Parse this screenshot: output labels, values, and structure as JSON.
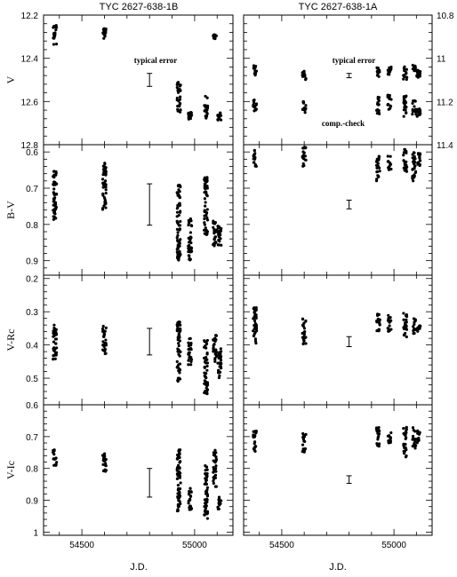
{
  "chart_data": {
    "type": "scatter",
    "xlabel": "J.D.",
    "xlim": [
      54330,
      55170
    ],
    "xticks": [
      54500,
      55000
    ],
    "columns": [
      {
        "title": "TYC 2627-638-1B"
      },
      {
        "title": "TYC 2627-638-1A"
      }
    ],
    "panels": [
      {
        "ylabel": "V",
        "ylim": [
          12.2,
          12.8
        ],
        "yticks_left": [
          12.2,
          12.4,
          12.6,
          12.8
        ],
        "yticks_right": [
          10.8,
          11,
          11.2,
          11.4
        ],
        "right_ylim": [
          10.8,
          11.4
        ],
        "annotation": "typical error",
        "annotation_right_extra": "comp.-check",
        "B": {
          "clusters": [
            {
              "x": 54380,
              "y": [
                12.24,
                12.34
              ]
            },
            {
              "x": 54600,
              "y": [
                12.26,
                12.31
              ]
            },
            {
              "x": 54930,
              "y": [
                12.51,
                12.66
              ]
            },
            {
              "x": 54980,
              "y": [
                12.65,
                12.69
              ]
            },
            {
              "x": 55050,
              "y": [
                12.57,
                12.68
              ]
            },
            {
              "x": 55090,
              "y": [
                12.29,
                12.31
              ]
            },
            {
              "x": 55110,
              "y": [
                12.65,
                12.69
              ]
            }
          ],
          "error_bar": {
            "x": 54800,
            "y": 12.5,
            "err": 0.03
          }
        },
        "A": {
          "clusters": [
            {
              "x": 54380,
              "y": [
                11.03,
                11.08
              ]
            },
            {
              "x": 54380,
              "y": [
                11.19,
                11.25
              ]
            },
            {
              "x": 54600,
              "y": [
                11.06,
                11.1
              ]
            },
            {
              "x": 54600,
              "y": [
                11.2,
                11.26
              ]
            },
            {
              "x": 54930,
              "y": [
                11.04,
                11.09
              ]
            },
            {
              "x": 54930,
              "y": [
                11.18,
                11.26
              ]
            },
            {
              "x": 54980,
              "y": [
                11.04,
                11.08
              ]
            },
            {
              "x": 54980,
              "y": [
                11.17,
                11.24
              ]
            },
            {
              "x": 55050,
              "y": [
                11.03,
                11.1
              ]
            },
            {
              "x": 55050,
              "y": [
                11.17,
                11.27
              ]
            },
            {
              "x": 55090,
              "y": [
                11.03,
                11.06
              ]
            },
            {
              "x": 55090,
              "y": [
                11.19,
                11.26
              ]
            },
            {
              "x": 55110,
              "y": [
                11.05,
                11.1
              ]
            },
            {
              "x": 55110,
              "y": [
                11.23,
                11.27
              ]
            }
          ],
          "error_bar": {
            "x": 54800,
            "y": 11.08,
            "err": 0.01
          }
        }
      },
      {
        "ylabel": "B-V",
        "ylim": [
          0.58,
          0.94
        ],
        "yticks_left": [
          0.6,
          0.7,
          0.8,
          0.9
        ],
        "B": {
          "clusters": [
            {
              "x": 54380,
              "y": [
                0.65,
                0.79
              ]
            },
            {
              "x": 54600,
              "y": [
                0.63,
                0.76
              ]
            },
            {
              "x": 54930,
              "y": [
                0.69,
                0.9
              ]
            },
            {
              "x": 54980,
              "y": [
                0.78,
                0.9
              ]
            },
            {
              "x": 55050,
              "y": [
                0.67,
                0.83
              ]
            },
            {
              "x": 55090,
              "y": [
                0.79,
                0.86
              ]
            },
            {
              "x": 55110,
              "y": [
                0.8,
                0.87
              ]
            }
          ],
          "error_bar": {
            "x": 54800,
            "y": 0.745,
            "err": 0.057
          }
        },
        "A": {
          "clusters": [
            {
              "x": 54380,
              "y": [
                0.59,
                0.64
              ]
            },
            {
              "x": 54600,
              "y": [
                0.58,
                0.64
              ]
            },
            {
              "x": 54930,
              "y": [
                0.61,
                0.68
              ]
            },
            {
              "x": 54980,
              "y": [
                0.61,
                0.65
              ]
            },
            {
              "x": 55050,
              "y": [
                0.59,
                0.66
              ]
            },
            {
              "x": 55090,
              "y": [
                0.6,
                0.68
              ]
            },
            {
              "x": 55110,
              "y": [
                0.6,
                0.64
              ]
            }
          ],
          "error_bar": {
            "x": 54800,
            "y": 0.745,
            "err": 0.012
          }
        }
      },
      {
        "ylabel": "V-Rc",
        "ylim": [
          0.19,
          0.58
        ],
        "yticks_left": [
          0.2,
          0.3,
          0.4,
          0.5
        ],
        "B": {
          "clusters": [
            {
              "x": 54380,
              "y": [
                0.34,
                0.45
              ]
            },
            {
              "x": 54600,
              "y": [
                0.34,
                0.43
              ]
            },
            {
              "x": 54930,
              "y": [
                0.33,
                0.51
              ]
            },
            {
              "x": 54980,
              "y": [
                0.38,
                0.46
              ]
            },
            {
              "x": 55050,
              "y": [
                0.38,
                0.55
              ]
            },
            {
              "x": 55090,
              "y": [
                0.37,
                0.45
              ]
            },
            {
              "x": 55110,
              "y": [
                0.41,
                0.5
              ]
            }
          ],
          "error_bar": {
            "x": 54800,
            "y": 0.39,
            "err": 0.04
          }
        },
        "A": {
          "clusters": [
            {
              "x": 54380,
              "y": [
                0.28,
                0.4
              ]
            },
            {
              "x": 54600,
              "y": [
                0.32,
                0.4
              ]
            },
            {
              "x": 54930,
              "y": [
                0.3,
                0.36
              ]
            },
            {
              "x": 54980,
              "y": [
                0.31,
                0.36
              ]
            },
            {
              "x": 55050,
              "y": [
                0.3,
                0.38
              ]
            },
            {
              "x": 55090,
              "y": [
                0.32,
                0.37
              ]
            },
            {
              "x": 55110,
              "y": [
                0.34,
                0.36
              ]
            }
          ],
          "error_bar": {
            "x": 54800,
            "y": 0.39,
            "err": 0.015
          }
        }
      },
      {
        "ylabel": "V-Ic",
        "ylim": [
          0.6,
          1.01
        ],
        "yticks_left": [
          0.6,
          0.7,
          0.8,
          0.9,
          1
        ],
        "B": {
          "clusters": [
            {
              "x": 54380,
              "y": [
                0.74,
                0.8
              ]
            },
            {
              "x": 54600,
              "y": [
                0.75,
                0.81
              ]
            },
            {
              "x": 54930,
              "y": [
                0.74,
                0.94
              ]
            },
            {
              "x": 54980,
              "y": [
                0.86,
                0.94
              ]
            },
            {
              "x": 55050,
              "y": [
                0.79,
                0.96
              ]
            },
            {
              "x": 55090,
              "y": [
                0.74,
                0.86
              ]
            },
            {
              "x": 55110,
              "y": [
                0.89,
                0.93
              ]
            }
          ],
          "error_bar": {
            "x": 54800,
            "y": 0.845,
            "err": 0.045
          }
        },
        "A": {
          "clusters": [
            {
              "x": 54380,
              "y": [
                0.68,
                0.75
              ]
            },
            {
              "x": 54600,
              "y": [
                0.69,
                0.75
              ]
            },
            {
              "x": 54930,
              "y": [
                0.67,
                0.73
              ]
            },
            {
              "x": 54980,
              "y": [
                0.68,
                0.72
              ]
            },
            {
              "x": 55050,
              "y": [
                0.67,
                0.77
              ]
            },
            {
              "x": 55090,
              "y": [
                0.67,
                0.74
              ]
            },
            {
              "x": 55110,
              "y": [
                0.68,
                0.72
              ]
            }
          ],
          "error_bar": {
            "x": 54800,
            "y": 0.835,
            "err": 0.012
          }
        }
      }
    ]
  }
}
